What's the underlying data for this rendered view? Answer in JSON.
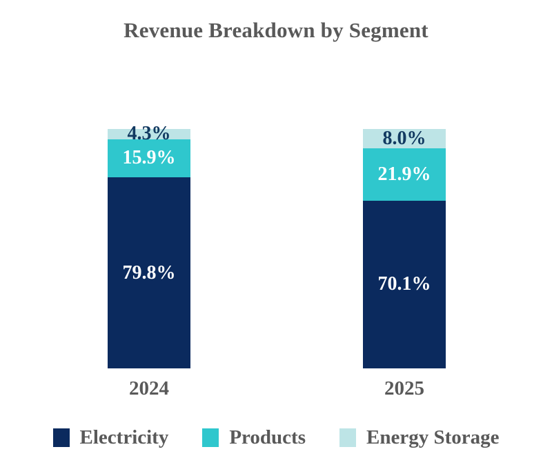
{
  "title": "Revenue Breakdown by Segment",
  "colors": {
    "electricity": "#0b2a5e",
    "products": "#2fc7cd",
    "energy_storage": "#bde4e6",
    "text_gray": "#595959",
    "label_on_light": "#123a61",
    "label_on_dark": "#ffffff",
    "background": "#ffffff"
  },
  "chart_data": {
    "type": "bar",
    "subtype": "stacked-100-percent-column",
    "title": "Revenue Breakdown by Segment",
    "categories": [
      "2024",
      "2025"
    ],
    "series": [
      {
        "name": "Electricity",
        "values": [
          79.8,
          70.1
        ],
        "color": "#0b2a5e",
        "label_color": "#ffffff"
      },
      {
        "name": "Products",
        "values": [
          15.9,
          21.9
        ],
        "color": "#2fc7cd",
        "label_color": "#ffffff"
      },
      {
        "name": "Energy Storage",
        "values": [
          4.3,
          8.0
        ],
        "color": "#bde4e6",
        "label_color": "#123a61"
      }
    ],
    "data_labels": {
      "2024": [
        "79.8%",
        "15.9%",
        "4.3%"
      ],
      "2025": [
        "70.1%",
        "21.9%",
        "8.0%"
      ]
    },
    "value_format": "percent",
    "ylim": [
      0,
      100
    ],
    "grid": false,
    "axes_visible": false,
    "legend_position": "bottom",
    "legend_entries": [
      "Electricity",
      "Products",
      "Energy Storage"
    ]
  }
}
